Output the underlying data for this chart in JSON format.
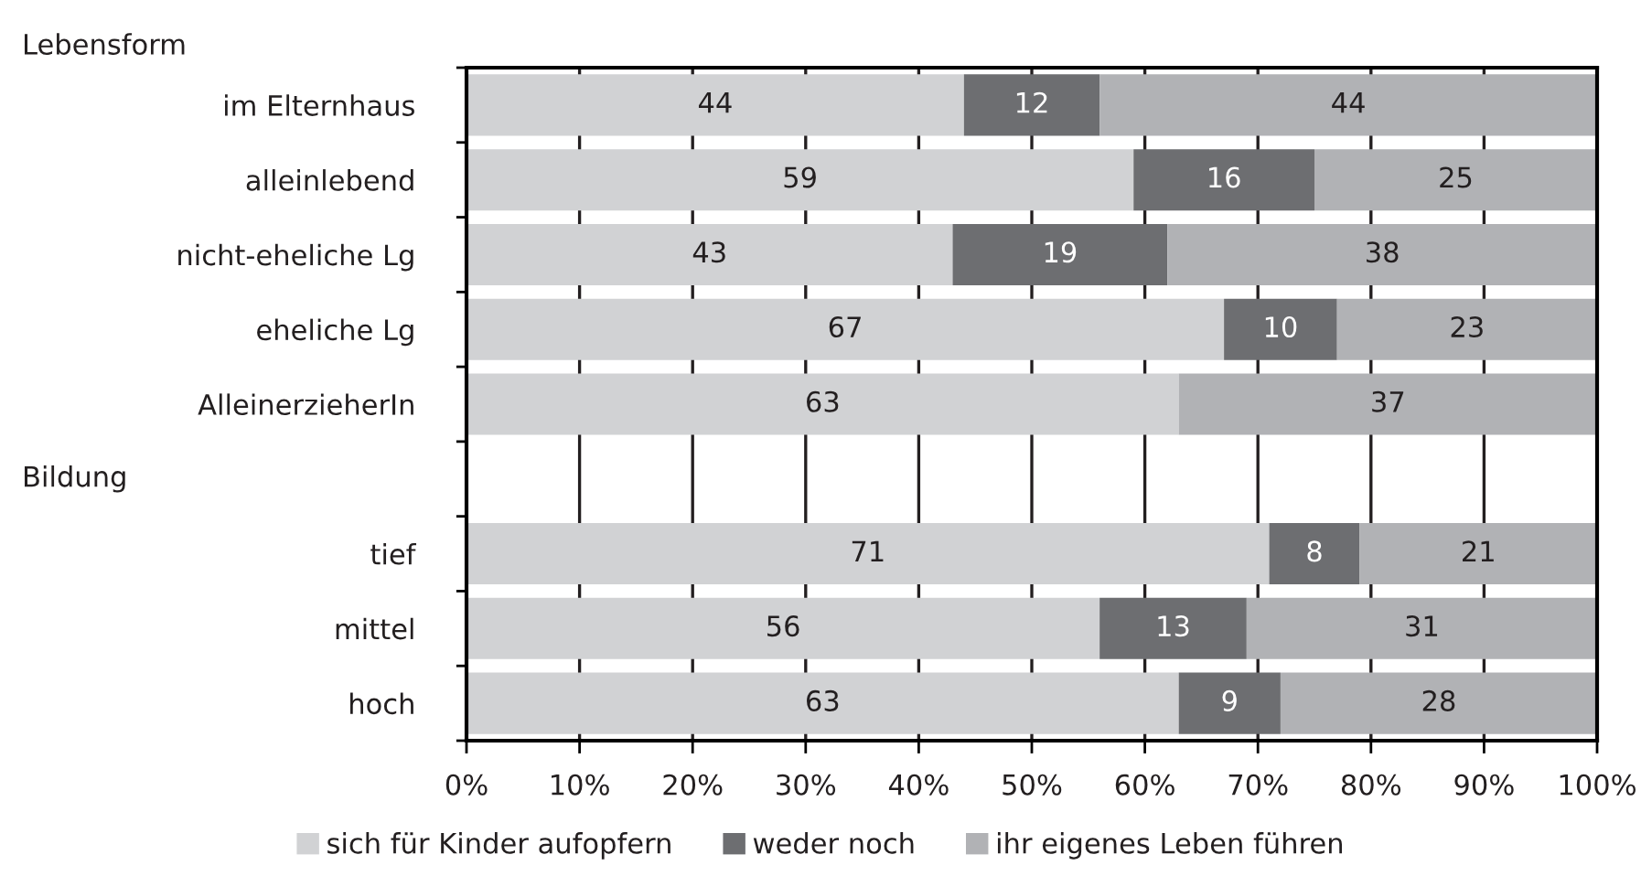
{
  "chart_data": {
    "type": "bar",
    "orientation": "horizontal",
    "stacked": true,
    "categories": [
      "im Elternhaus",
      "alleinlebend",
      "nicht-eheliche Lg",
      "eheliche Lg",
      "AlleinerzieherIn",
      null,
      "tief",
      "mittel",
      "hoch"
    ],
    "series": [
      {
        "name": "sich für Kinder aufopfern",
        "color": "#d1d2d4",
        "values": [
          44,
          59,
          43,
          67,
          63,
          null,
          71,
          56,
          63
        ]
      },
      {
        "name": "weder noch",
        "color": "#6d6e71",
        "values": [
          12,
          16,
          19,
          10,
          null,
          null,
          8,
          13,
          9
        ]
      },
      {
        "name": "ihr eigenes Leben führen",
        "color": "#b1b2b5",
        "values": [
          44,
          25,
          38,
          23,
          37,
          null,
          21,
          31,
          28
        ]
      }
    ],
    "xlim": [
      0,
      100
    ],
    "xticks": [
      {
        "value": 0,
        "label": "0%"
      },
      {
        "value": 10,
        "label": "10%"
      },
      {
        "value": 20,
        "label": "20%"
      },
      {
        "value": 30,
        "label": "30%"
      },
      {
        "value": 40,
        "label": "40%"
      },
      {
        "value": 50,
        "label": "50%"
      },
      {
        "value": 60,
        "label": "60%"
      },
      {
        "value": 70,
        "label": "70%"
      },
      {
        "value": 80,
        "label": "80%"
      },
      {
        "value": 90,
        "label": "90%"
      },
      {
        "value": 100,
        "label": "100%"
      }
    ],
    "grid": "x",
    "legend": "bottom",
    "data_labels": true,
    "annotations": [
      "Lebensform",
      "Bildung"
    ]
  }
}
